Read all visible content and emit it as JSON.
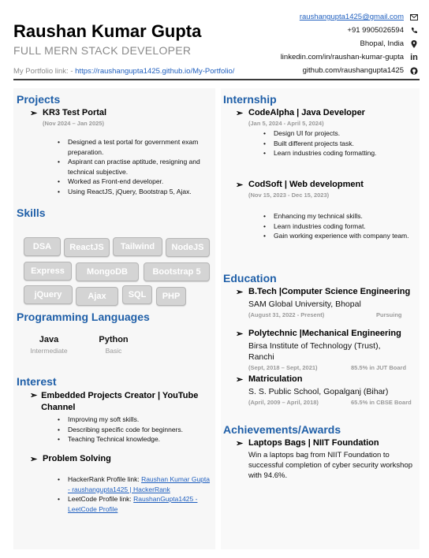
{
  "header": {
    "name": "Raushan Kumar Gupta",
    "role": "FULL MERN STACK DEVELOPER",
    "portfolio_label": "My Portfolio link: - ",
    "portfolio_url": "https://raushangupta1425.github.io/My-Portfolio/"
  },
  "contact": {
    "email": "raushangupta1425@gmail.com",
    "phone": "+91 9905026594",
    "location": "Bhopal, India",
    "linkedin": "linkedin.com/in/raushan-kumar-gupta",
    "github": "github.com/raushangupta1425",
    "icons": [
      "mail-icon",
      "phone-icon",
      "location-pin-icon",
      "linkedin-icon",
      "github-icon"
    ]
  },
  "colors": {
    "heading": "#1f5fa8",
    "link": "#1f5fbf",
    "muted": "#9a9a9a",
    "chip": "#d4d4d4"
  },
  "projects": {
    "title": "Projects",
    "items": [
      {
        "name": "KR3 Test Portal",
        "date": "(Nov 2024 – Jan 2025)",
        "bullets": [
          "Designed a test portal for government exam preparation.",
          "Aspirant can practise aptitude, resigning and technical subjective.",
          "Worked as Front-end developer.",
          "Using ReactJS, jQuery, Bootstrap 5, Ajax."
        ]
      }
    ]
  },
  "skills": {
    "title": "Skills",
    "chips": [
      "DSA",
      "ReactJS",
      "Tailwind",
      "NodeJS",
      "Express",
      "MongoDB",
      "Bootstrap 5",
      "jQuery",
      "Ajax",
      "SQL",
      "PHP"
    ]
  },
  "languages": {
    "title": "Programming Languages",
    "items": [
      {
        "name": "Java",
        "level": "Intermediate"
      },
      {
        "name": "Python",
        "level": "Basic"
      }
    ]
  },
  "interest": {
    "title": "Interest",
    "items": [
      {
        "name": "Embedded Projects Creator | YouTube Channel",
        "bullets": [
          "Improving my soft skills.",
          "Describing specific code for beginners.",
          "Teaching Technical knowledge."
        ]
      },
      {
        "name": "Problem Solving",
        "links": [
          {
            "label": "HackerRank Profile link: ",
            "text": "Raushan Kumar Gupta - raushangupta1425 | HackerRank"
          },
          {
            "label": "LeetCode Profile link: ",
            "text": "RaushanGupta1425 - LeetCode Profile"
          }
        ]
      }
    ]
  },
  "internship": {
    "title": "Internship",
    "items": [
      {
        "name": "CodeAlpha | Java Developer",
        "date": "(Jan 5, 2024 - April 5, 2024)",
        "bullets": [
          "Design UI for projects.",
          "Built different projects task.",
          "Learn industries coding formatting."
        ]
      },
      {
        "name": "CodSoft | Web development",
        "date": "(Nov 15, 2023 - Dec 15, 2023)",
        "bullets": [
          "Enhancing my technical skills.",
          "Learn industries coding format.",
          "Gain working experience with company team."
        ]
      }
    ]
  },
  "education": {
    "title": "Education",
    "items": [
      {
        "degree": "B.Tech |Computer Science Engineering",
        "school": "SAM Global University, Bhopal",
        "date": "(August 31, 2022 - Present)",
        "result": "Pursuing"
      },
      {
        "degree": "Polytechnic |Mechanical Engineering",
        "school": "Birsa Institute of Technology (Trust), Ranchi",
        "date": "(Sept, 2018 – Sept, 2021)",
        "result": "85.5% in JUT Board"
      },
      {
        "degree": "Matriculation",
        "school": "S. S. Public School, Gopalganj (Bihar)",
        "date": "(April, 2009 – April, 2018)",
        "result": "65.5% in CBSE Board"
      }
    ]
  },
  "achievements": {
    "title": "Achievements/Awards",
    "items": [
      {
        "name": "Laptops Bags | NIIT Foundation",
        "text": "Win a laptops bag from NIIT Foundation to successful completion of cyber security workshop with 94.6%."
      }
    ]
  }
}
